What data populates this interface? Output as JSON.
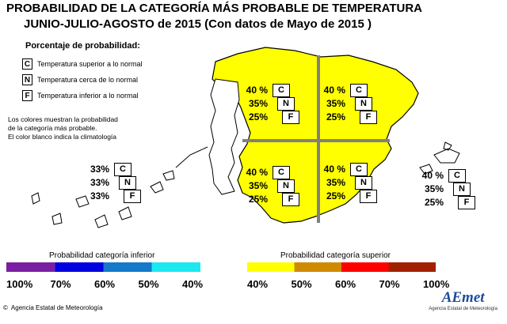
{
  "header": {
    "title_line1": "PROBABILIDAD DE LA CATEGORÍA MÁS PROBABLE DE TEMPERATURA",
    "title_line2": "JUNIO-JULIO-AGOSTO  de 2015  (Con datos de Mayo de 2015 )"
  },
  "legend": {
    "heading": "Porcentaje de probabilidad:",
    "items": [
      {
        "letter": "C",
        "label": "Temperatura superior a lo normal"
      },
      {
        "letter": "N",
        "label": "Temperatura cerca de lo normal"
      },
      {
        "letter": "F",
        "label": "Temperatura inferior a lo normal"
      }
    ],
    "note_lines": [
      "Los colores muestran la probabilidad",
      "de la categoría más probable.",
      "El color blanco indica la climatología"
    ]
  },
  "regions": [
    {
      "id": "northwest",
      "values": [
        "40 %",
        "35%",
        "25%"
      ],
      "letters": [
        "C",
        "N",
        "F"
      ]
    },
    {
      "id": "northeast",
      "values": [
        "40 %",
        "35%",
        "25%"
      ],
      "letters": [
        "C",
        "N",
        "F"
      ]
    },
    {
      "id": "southwest",
      "values": [
        "40 %",
        "35%",
        "25%"
      ],
      "letters": [
        "C",
        "N",
        "F"
      ]
    },
    {
      "id": "southeast",
      "values": [
        "40 %",
        "35%",
        "25%"
      ],
      "letters": [
        "C",
        "N",
        "F"
      ]
    },
    {
      "id": "balearic",
      "values": [
        "40 %",
        "35%",
        "25%"
      ],
      "letters": [
        "C",
        "N",
        "F"
      ]
    },
    {
      "id": "canary",
      "values": [
        "33%",
        "33%",
        "33%"
      ],
      "letters": [
        "C",
        "N",
        "F"
      ]
    }
  ],
  "scale": {
    "lower_label": "Probabilidad categoría inferior",
    "upper_label": "Probabilidad categoría superior",
    "lower_ticks": [
      "100%",
      "70%",
      "60%",
      "50%",
      "40%"
    ],
    "upper_ticks": [
      "40%",
      "50%",
      "60%",
      "70%",
      "100%"
    ],
    "lower_colors": [
      "#7a1fa2",
      "#0000e0",
      "#1479c8",
      "#1ce8f0"
    ],
    "upper_colors": [
      "#ffff00",
      "#d08a00",
      "#ff0000",
      "#a02000"
    ]
  },
  "colors": {
    "map_fill": "#ffff00",
    "divider": "#808080"
  },
  "footer": {
    "agency": "Agencia Estatal de Meteorología",
    "logo_text": "AEmet",
    "logo_sub": "Agencia Estatal de Meteorología"
  }
}
